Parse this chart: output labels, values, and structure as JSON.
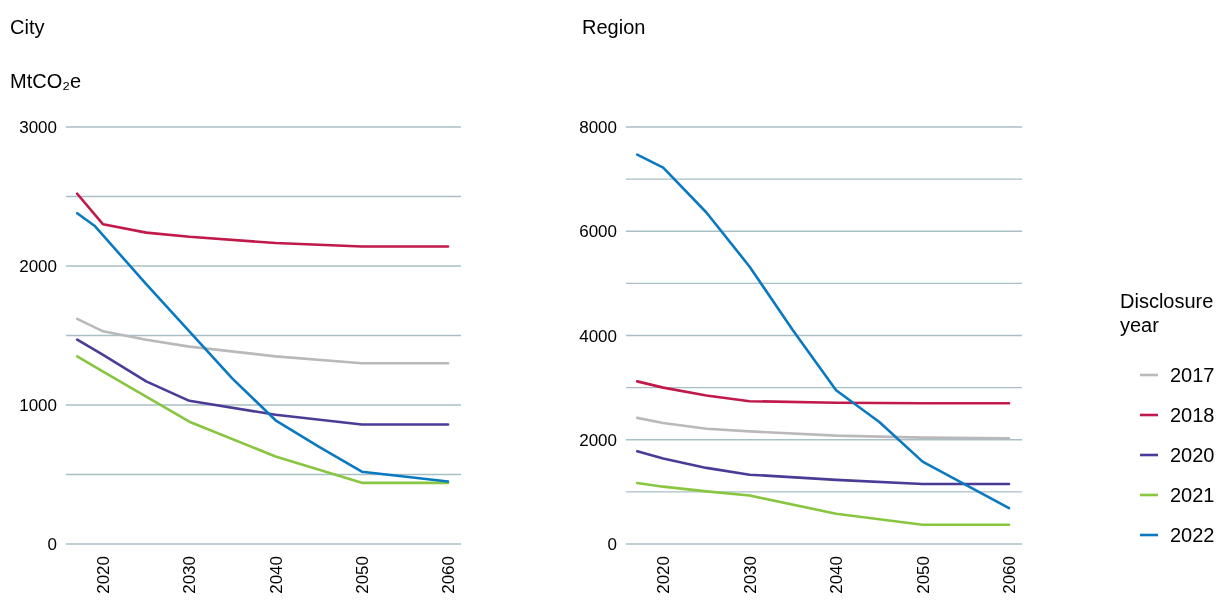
{
  "chart_data": [
    {
      "type": "line",
      "title": "City",
      "ylabel": "MtCO₂e",
      "xlim": [
        2015.7,
        2061.5
      ],
      "ylim": [
        0,
        3000
      ],
      "xticks": [
        2020,
        2030,
        2040,
        2050,
        2060
      ],
      "yticks": [
        0,
        {
          "value": 500,
          "label": null
        },
        1000,
        {
          "value": 1500,
          "label": null
        },
        2000,
        {
          "value": 2500,
          "label": null
        },
        3000
      ],
      "grid": "y",
      "legend": false,
      "series": [
        {
          "color": "#b9b9bb",
          "x": [
            2017,
            2020,
            2025,
            2030,
            2040,
            2050,
            2060
          ],
          "values": [
            1620,
            1530,
            1470,
            1420,
            1350,
            1300,
            1300
          ]
        },
        {
          "color": "#c0194a",
          "x": [
            2017,
            2020,
            2025,
            2030,
            2040,
            2050,
            2060
          ],
          "values": [
            2520,
            2300,
            2240,
            2210,
            2165,
            2140,
            2140
          ]
        },
        {
          "color": "#4b3a96",
          "x": [
            2017,
            2020,
            2025,
            2030,
            2040,
            2050,
            2060
          ],
          "values": [
            1470,
            1360,
            1170,
            1030,
            930,
            860,
            860
          ]
        },
        {
          "color": "#88c540",
          "x": [
            2017,
            2020,
            2025,
            2030,
            2040,
            2050,
            2060
          ],
          "values": [
            1350,
            1240,
            1060,
            880,
            630,
            440,
            440
          ]
        },
        {
          "color": "#0a79c0",
          "x": [
            2017,
            2019,
            2025,
            2030,
            2035,
            2040,
            2045,
            2050,
            2060
          ],
          "values": [
            2380,
            2290,
            1870,
            1530,
            1190,
            890,
            700,
            520,
            450
          ]
        }
      ]
    },
    {
      "type": "line",
      "title": "Region",
      "xlim": [
        2015.7,
        2061.5
      ],
      "ylim": [
        0,
        8000
      ],
      "xticks": [
        2020,
        2030,
        2040,
        2050,
        2060
      ],
      "yticks": [
        0,
        {
          "value": 1000,
          "label": null
        },
        2000,
        {
          "value": 3000,
          "label": null
        },
        4000,
        {
          "value": 5000,
          "label": null
        },
        6000,
        {
          "value": 7000,
          "label": null
        },
        8000
      ],
      "grid": "y",
      "legend": "right",
      "legend_title": "Disclosure year",
      "series": [
        {
          "name": "2017",
          "color": "#b9b9bb",
          "x": [
            2017,
            2020,
            2025,
            2030,
            2040,
            2050,
            2060
          ],
          "values": [
            2420,
            2320,
            2210,
            2160,
            2080,
            2040,
            2030
          ]
        },
        {
          "name": "2018",
          "color": "#c0194a",
          "x": [
            2017,
            2020,
            2025,
            2030,
            2040,
            2050,
            2060
          ],
          "values": [
            3120,
            3000,
            2850,
            2740,
            2710,
            2700,
            2700
          ]
        },
        {
          "name": "2020",
          "color": "#4b3a96",
          "x": [
            2017,
            2020,
            2025,
            2030,
            2040,
            2050,
            2060
          ],
          "values": [
            1780,
            1640,
            1460,
            1330,
            1230,
            1150,
            1150
          ]
        },
        {
          "name": "2021",
          "color": "#88c540",
          "x": [
            2017,
            2020,
            2025,
            2030,
            2040,
            2050,
            2060
          ],
          "values": [
            1170,
            1100,
            1010,
            930,
            580,
            370,
            370
          ]
        },
        {
          "name": "2022",
          "color": "#0a79c0",
          "x": [
            2017,
            2020,
            2025,
            2030,
            2035,
            2040,
            2045,
            2050,
            2060
          ],
          "values": [
            7470,
            7220,
            6360,
            5320,
            4100,
            2950,
            2340,
            1580,
            690
          ]
        }
      ]
    }
  ]
}
